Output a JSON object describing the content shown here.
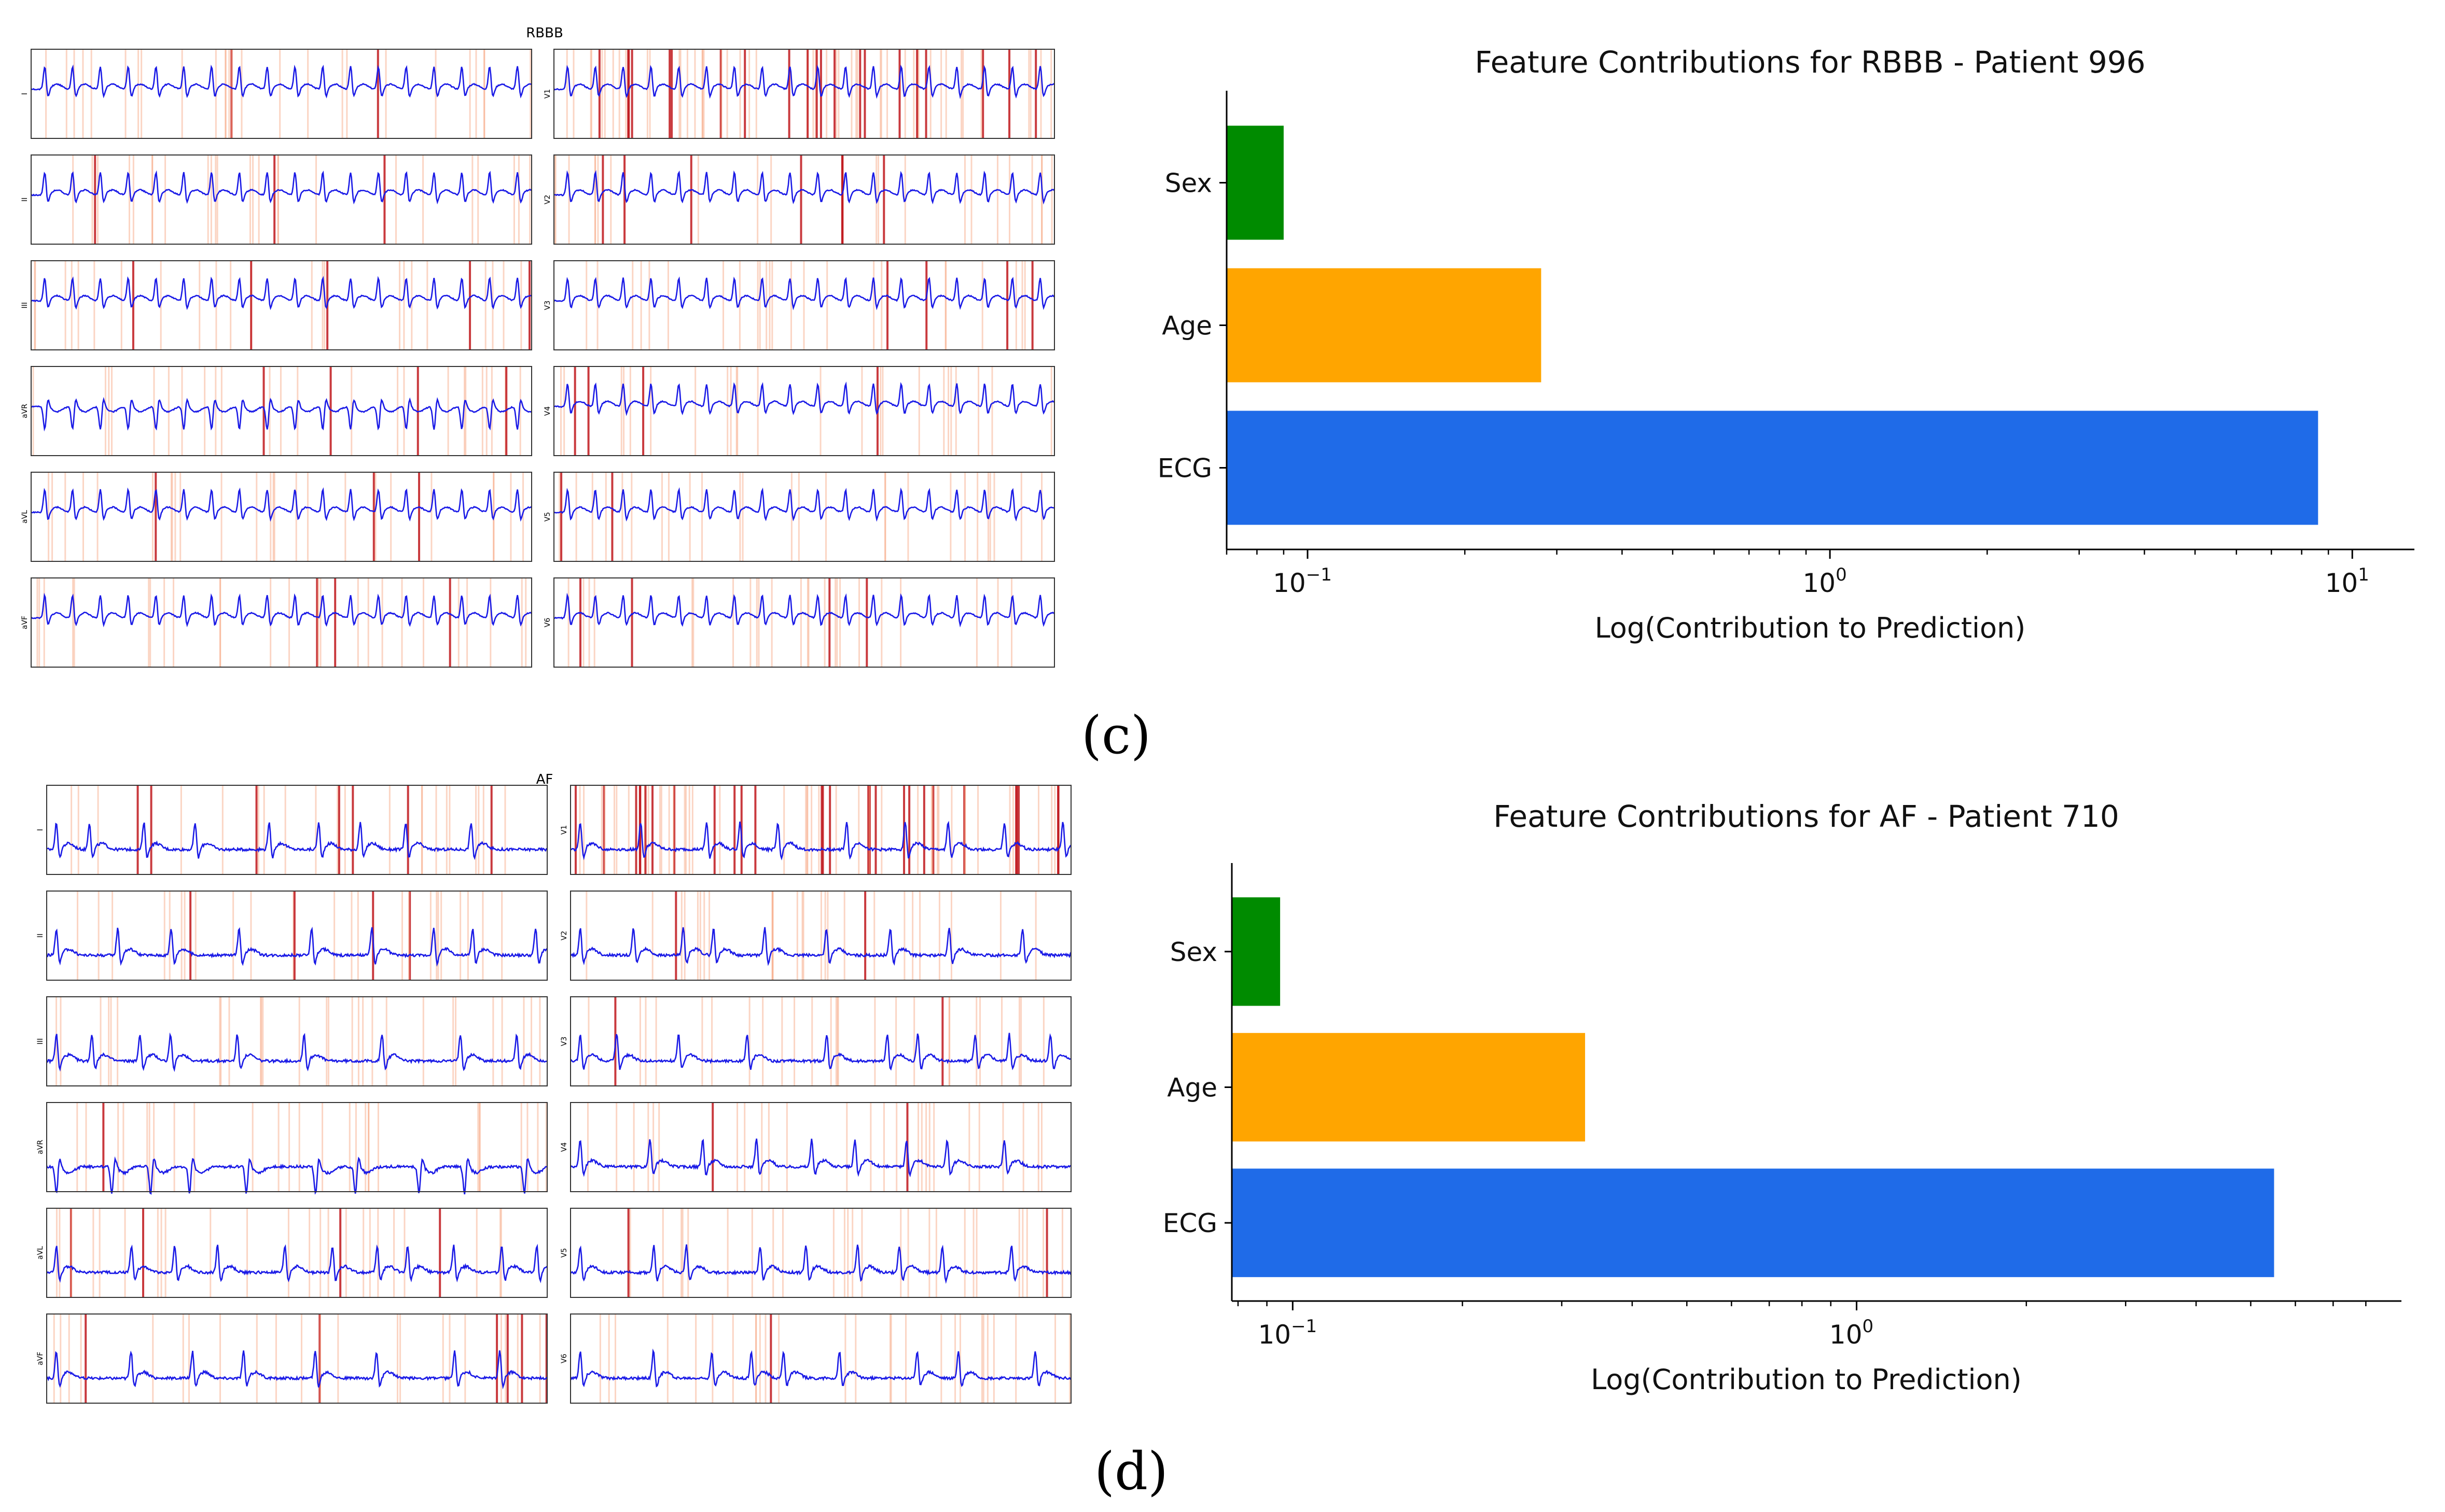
{
  "panel_labels": {
    "c": "(c)",
    "d": "(d)"
  },
  "ecg_panels": [
    {
      "id": "c",
      "title": "RBBB",
      "rhythm": "regular",
      "beats": 18,
      "lead_labels": [
        "I",
        "II",
        "III",
        "aVR",
        "aVL",
        "aVF",
        "V1",
        "V2",
        "V3",
        "V4",
        "V5",
        "V6"
      ]
    },
    {
      "id": "d",
      "title": "AF",
      "rhythm": "irregular",
      "beats": 9,
      "lead_labels": [
        "I",
        "II",
        "III",
        "aVR",
        "aVL",
        "aVF",
        "V1",
        "V2",
        "V3",
        "V4",
        "V5",
        "V6"
      ]
    }
  ],
  "chart_data": [
    {
      "type": "bar",
      "orientation": "horizontal",
      "title": "Feature Contributions for RBBB - Patient 996",
      "xlabel": "Log(Contribution to Prediction)",
      "ylabel": "",
      "xscale": "log",
      "xlim": [
        0.07,
        12
      ],
      "xticks": [
        {
          "value": 0.1,
          "base": "10",
          "exp": "−1"
        },
        {
          "value": 1,
          "base": "10",
          "exp": "0"
        },
        {
          "value": 10,
          "base": "10",
          "exp": "1"
        }
      ],
      "categories": [
        "Sex",
        "Age",
        "ECG"
      ],
      "values": [
        0.09,
        0.28,
        8.6
      ],
      "colors": [
        "#008b00",
        "#ffa500",
        "#1f6be8"
      ]
    },
    {
      "type": "bar",
      "orientation": "horizontal",
      "title": "Feature Contributions for AF - Patient 710",
      "xlabel": "Log(Contribution to Prediction)",
      "ylabel": "",
      "xscale": "log",
      "xlim": [
        0.078,
        8.5
      ],
      "xticks": [
        {
          "value": 0.1,
          "base": "10",
          "exp": "−1"
        },
        {
          "value": 1,
          "base": "10",
          "exp": "0"
        }
      ],
      "categories": [
        "Sex",
        "Age",
        "ECG"
      ],
      "values": [
        0.095,
        0.33,
        5.5
      ],
      "colors": [
        "#008b00",
        "#ffa500",
        "#1f6be8"
      ]
    }
  ]
}
